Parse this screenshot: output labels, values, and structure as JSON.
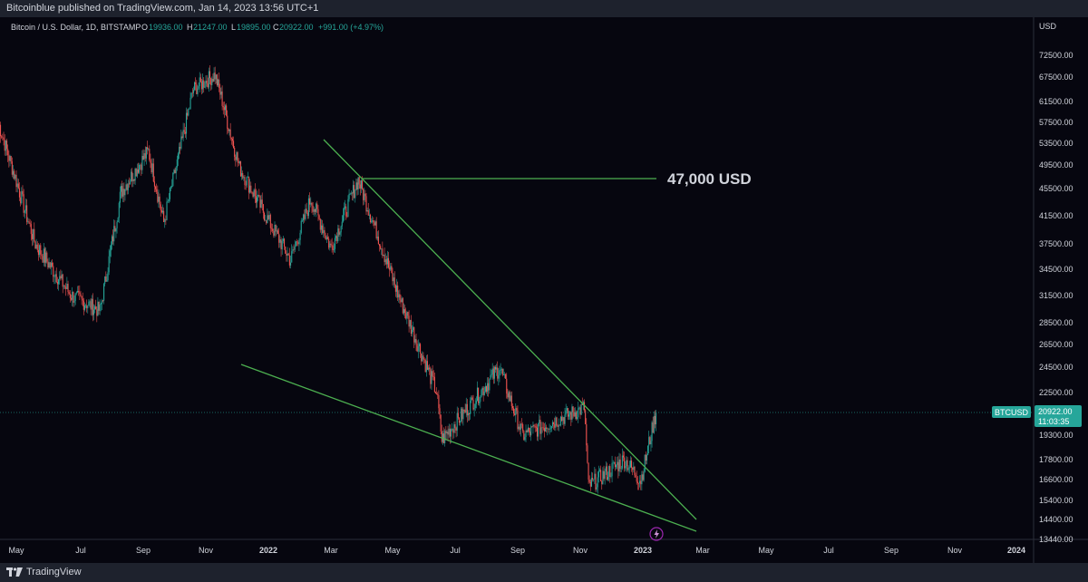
{
  "header": {
    "published": "Bitcoinblue published on TradingView.com, Jan 14, 2023 13:56 UTC+1"
  },
  "legend": {
    "symbol": "Bitcoin / U.S. Dollar, 1D, BITSTAMP",
    "o_label": "O",
    "o_value": "19936.00",
    "h_label": "H",
    "h_value": "21247.00",
    "l_label": "L",
    "l_value": "19895.00",
    "c_label": "C",
    "c_value": "20922.00",
    "change": "+991.00 (+4.97%)"
  },
  "price_axis": {
    "currency": "USD",
    "ticks": [
      "72500.00",
      "67500.00",
      "61500.00",
      "57500.00",
      "53500.00",
      "49500.00",
      "45500.00",
      "41500.00",
      "37500.00",
      "34500.00",
      "31500.00",
      "28500.00",
      "26500.00",
      "24500.00",
      "22500.00",
      "19300.00",
      "17800.00",
      "16600.00",
      "15400.00",
      "14400.00",
      "13440.00"
    ]
  },
  "time_axis": {
    "ticks": [
      {
        "label": "May",
        "bold": false
      },
      {
        "label": "Jul",
        "bold": false
      },
      {
        "label": "Sep",
        "bold": false
      },
      {
        "label": "Nov",
        "bold": false
      },
      {
        "label": "2022",
        "bold": true
      },
      {
        "label": "Mar",
        "bold": false
      },
      {
        "label": "May",
        "bold": false
      },
      {
        "label": "Jul",
        "bold": false
      },
      {
        "label": "Sep",
        "bold": false
      },
      {
        "label": "Nov",
        "bold": false
      },
      {
        "label": "2023",
        "bold": true
      },
      {
        "label": "Mar",
        "bold": false
      },
      {
        "label": "May",
        "bold": false
      },
      {
        "label": "Jul",
        "bold": false
      },
      {
        "label": "Sep",
        "bold": false
      },
      {
        "label": "Nov",
        "bold": false
      },
      {
        "label": "2024",
        "bold": true
      }
    ]
  },
  "price_tag": {
    "symbol": "BTCUSD",
    "price": "20922.00",
    "countdown": "11:03:35"
  },
  "annotation": {
    "text": "47,000 USD"
  },
  "footer": {
    "brand": "TradingView"
  },
  "colors": {
    "up": "#26a69a",
    "down": "#ef5350",
    "trendline": "#4caf50",
    "price_tag": "#26a69a",
    "background": "#06060f"
  },
  "chart_data": {
    "type": "candlestick",
    "symbol": "BTCUSD",
    "interval": "1D",
    "ylim": [
      13440,
      72500
    ],
    "y_scale": "log",
    "last_close": 20922,
    "approx_daily_close_path": [
      {
        "date": "2021-04-14",
        "close": 57500
      },
      {
        "date": "2021-05-19",
        "close": 37500
      },
      {
        "date": "2021-06-22",
        "close": 31500
      },
      {
        "date": "2021-07-20",
        "close": 29800
      },
      {
        "date": "2021-08-10",
        "close": 45000
      },
      {
        "date": "2021-09-06",
        "close": 52000
      },
      {
        "date": "2021-09-21",
        "close": 40500
      },
      {
        "date": "2021-10-20",
        "close": 64500
      },
      {
        "date": "2021-11-10",
        "close": 68000
      },
      {
        "date": "2021-12-04",
        "close": 49000
      },
      {
        "date": "2022-01-22",
        "close": 35500
      },
      {
        "date": "2022-02-10",
        "close": 44000
      },
      {
        "date": "2022-03-01",
        "close": 37000
      },
      {
        "date": "2022-03-28",
        "close": 47000
      },
      {
        "date": "2022-05-10",
        "close": 30500
      },
      {
        "date": "2022-06-13",
        "close": 22500
      },
      {
        "date": "2022-06-18",
        "close": 19000
      },
      {
        "date": "2022-08-14",
        "close": 24500
      },
      {
        "date": "2022-09-06",
        "close": 19300
      },
      {
        "date": "2022-11-05",
        "close": 21300
      },
      {
        "date": "2022-11-09",
        "close": 16200
      },
      {
        "date": "2022-12-14",
        "close": 17800
      },
      {
        "date": "2022-12-30",
        "close": 16550
      },
      {
        "date": "2023-01-14",
        "close": 20922
      }
    ],
    "drawings": [
      {
        "type": "trendline",
        "from": {
          "date": "2022-03-01",
          "price": 53500
        },
        "to": {
          "date": "2023-02-26",
          "price": 14700
        }
      },
      {
        "type": "trendline",
        "from": {
          "date": "2021-12-15",
          "price": 24500
        },
        "to": {
          "date": "2023-02-26",
          "price": 13500
        }
      },
      {
        "type": "horizontal",
        "price": 47000,
        "from_date": "2022-03-29",
        "to_date": "2023-01-15",
        "label": "47,000 USD"
      }
    ]
  }
}
